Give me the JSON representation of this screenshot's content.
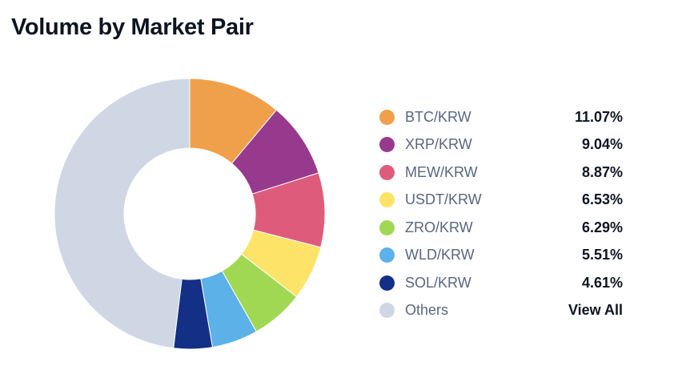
{
  "title": "Volume by Market Pair",
  "others": {
    "label": "Others",
    "color": "#cfd6e4",
    "link_label": "View All"
  },
  "chart_data": {
    "type": "pie",
    "title": "Volume by Market Pair",
    "donut": true,
    "unit": "%",
    "legend_position": "right",
    "categories": [
      "BTC/KRW",
      "XRP/KRW",
      "MEW/KRW",
      "USDT/KRW",
      "ZRO/KRW",
      "WLD/KRW",
      "SOL/KRW",
      "Others"
    ],
    "values": [
      11.07,
      9.04,
      8.87,
      6.53,
      6.29,
      5.51,
      4.61,
      48.08
    ],
    "value_labels": [
      "11.07%",
      "9.04%",
      "8.87%",
      "6.53%",
      "6.29%",
      "5.51%",
      "4.61%",
      ""
    ],
    "colors": [
      "#f0a04b",
      "#973a8d",
      "#de5b7b",
      "#fde469",
      "#a1d853",
      "#5cb1e8",
      "#132f86",
      "#cfd6e4"
    ]
  }
}
